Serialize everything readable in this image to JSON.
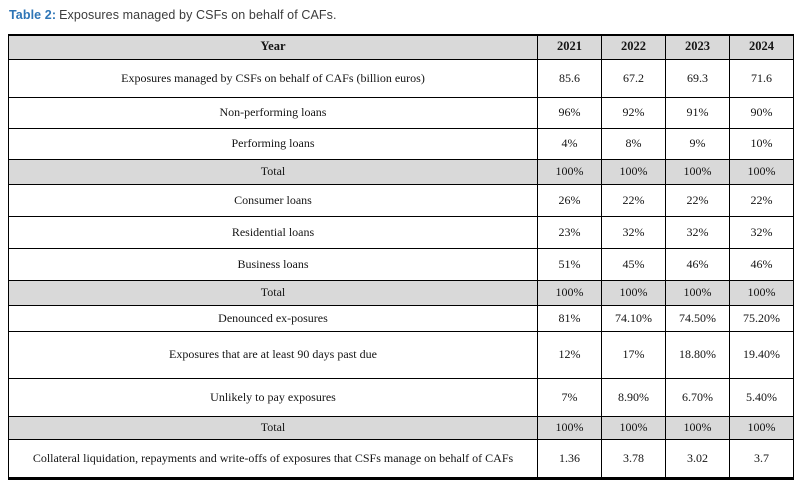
{
  "caption": {
    "label": "Table 2:",
    "text": "Exposures managed by CSFs on behalf of CAFs."
  },
  "colors": {
    "caption_accent": "#2e75b6",
    "header_row_bg": "#d9d9d9",
    "total_row_bg": "#d9d9d9",
    "border": "#000000",
    "text": "#141414"
  },
  "table": {
    "columns": [
      "Year",
      "2021",
      "2022",
      "2023",
      "2024"
    ],
    "rows": [
      {
        "label": "Exposures managed by CSFs on behalf of CAFs (billion euros)",
        "values": [
          "85.6",
          "67.2",
          "69.3",
          "71.6"
        ],
        "is_total": false
      },
      {
        "label": "Non-performing loans",
        "values": [
          "96%",
          "92%",
          "91%",
          "90%"
        ],
        "is_total": false
      },
      {
        "label": "Performing loans",
        "values": [
          "4%",
          "8%",
          "9%",
          "10%"
        ],
        "is_total": false
      },
      {
        "label": "Total",
        "values": [
          "100%",
          "100%",
          "100%",
          "100%"
        ],
        "is_total": true
      },
      {
        "label": "Consumer loans",
        "values": [
          "26%",
          "22%",
          "22%",
          "22%"
        ],
        "is_total": false
      },
      {
        "label": "Residential loans",
        "values": [
          "23%",
          "32%",
          "32%",
          "32%"
        ],
        "is_total": false
      },
      {
        "label": "Business loans",
        "values": [
          "51%",
          "45%",
          "46%",
          "46%"
        ],
        "is_total": false
      },
      {
        "label": "Total",
        "values": [
          "100%",
          "100%",
          "100%",
          "100%"
        ],
        "is_total": true
      },
      {
        "label": "Denounced ex-posures",
        "values": [
          "81%",
          "74.10%",
          "74.50%",
          "75.20%"
        ],
        "is_total": false
      },
      {
        "label": "Exposures that are at least 90 days past due",
        "values": [
          "12%",
          "17%",
          "18.80%",
          "19.40%"
        ],
        "is_total": false
      },
      {
        "label": "Unlikely to pay exposures",
        "values": [
          "7%",
          "8.90%",
          "6.70%",
          "5.40%"
        ],
        "is_total": false
      },
      {
        "label": "Total",
        "values": [
          "100%",
          "100%",
          "100%",
          "100%"
        ],
        "is_total": true
      },
      {
        "label": "Collateral liquidation, repayments and write-offs of exposures that CSFs manage on behalf of CAFs",
        "values": [
          "1.36",
          "3.78",
          "3.02",
          "3.7"
        ],
        "is_total": false
      }
    ]
  }
}
